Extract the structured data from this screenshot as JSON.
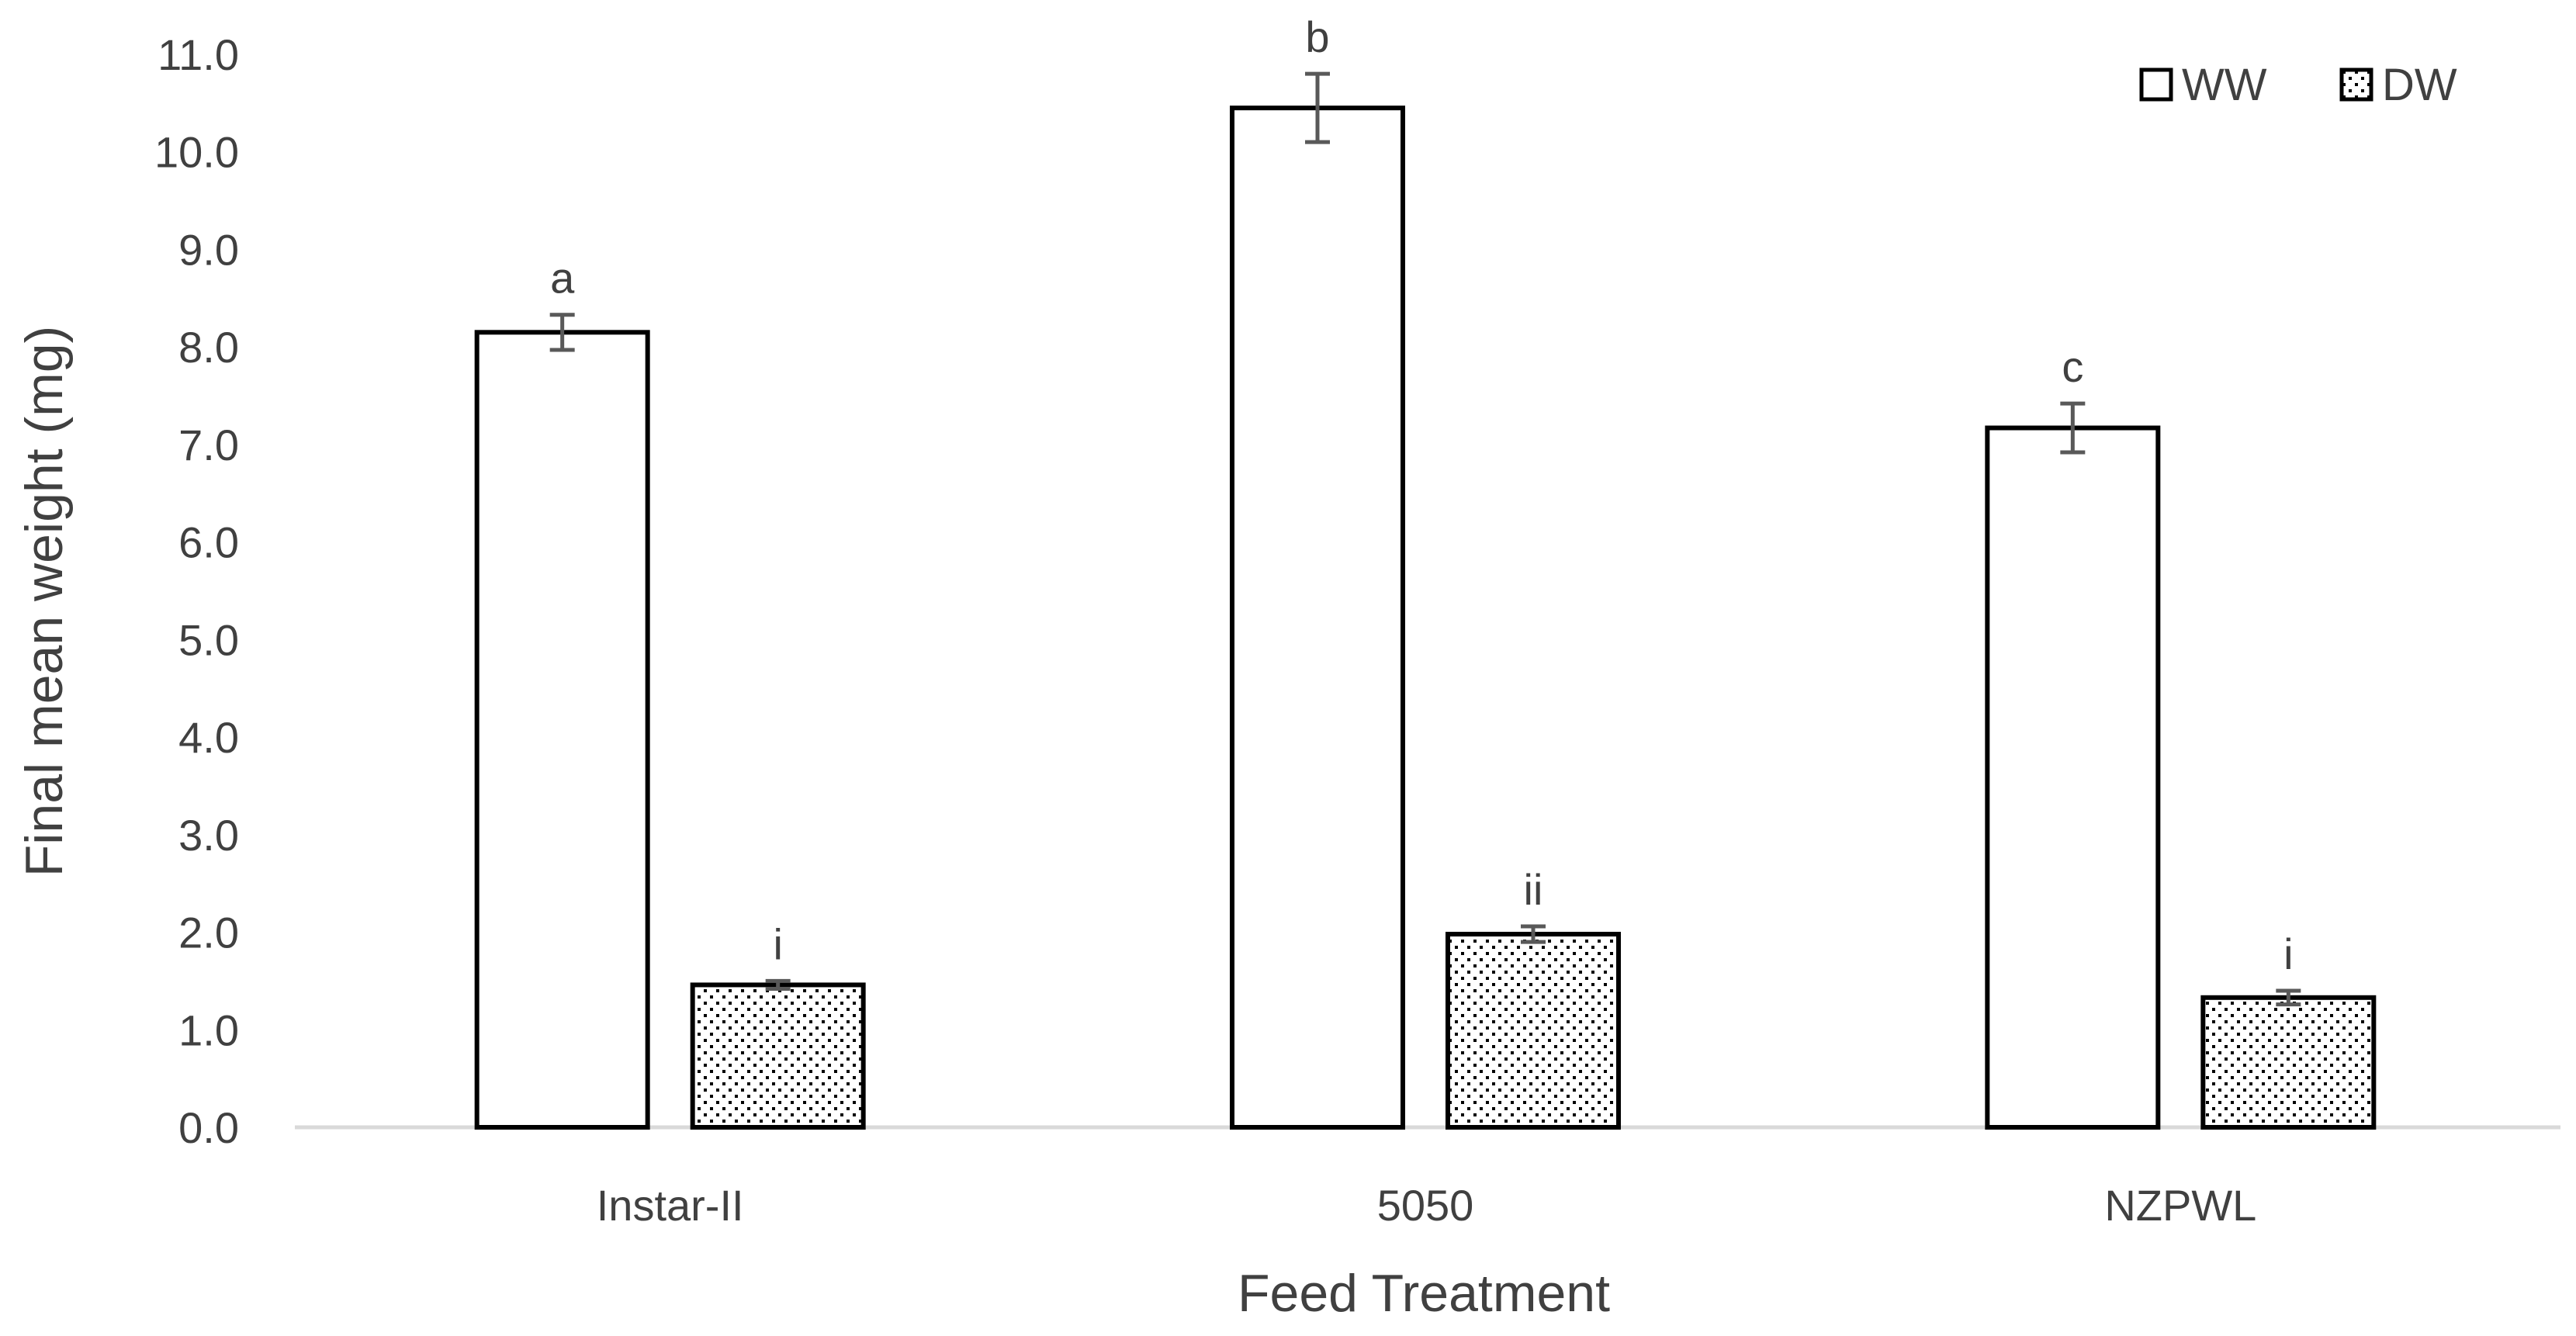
{
  "chart_data": {
    "type": "bar",
    "title": "",
    "xlabel": "Feed Treatment",
    "ylabel": "Final mean weight (mg)",
    "ylim": [
      0,
      11
    ],
    "ytick_step": 1,
    "ytick_labels": [
      "0.0",
      "1.0",
      "2.0",
      "3.0",
      "4.0",
      "5.0",
      "6.0",
      "7.0",
      "8.0",
      "9.0",
      "10.0",
      "11.0"
    ],
    "grid": false,
    "legend_position": "top-right",
    "categories": [
      "Instar-II",
      "5050",
      "NZPWL"
    ],
    "series": [
      {
        "name": "WW",
        "pattern": "solid-white",
        "values": [
          8.15,
          10.45,
          7.17
        ],
        "errors": [
          0.18,
          0.35,
          0.25
        ],
        "significance": [
          "a",
          "b",
          "c"
        ]
      },
      {
        "name": "DW",
        "pattern": "dotted",
        "values": [
          1.46,
          1.98,
          1.33
        ],
        "errors": [
          0.04,
          0.08,
          0.07
        ],
        "significance": [
          "i",
          "ii",
          "i"
        ]
      }
    ],
    "colors": {
      "bar_fill": "#ffffff",
      "bar_stroke": "#000000",
      "dots": "#000000",
      "axis": "#d9d9d9",
      "error_bar": "#595959",
      "text": "#404040"
    }
  }
}
